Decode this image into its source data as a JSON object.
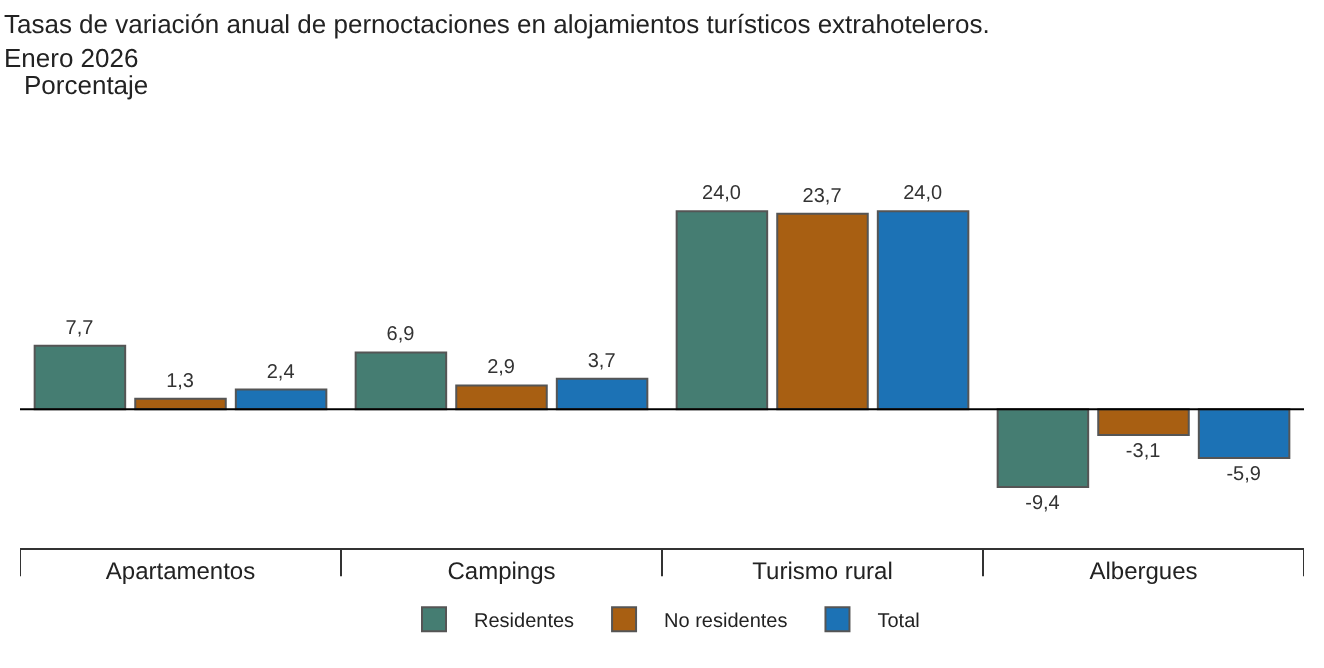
{
  "chart_data": {
    "type": "bar",
    "title": "Tasas de variación anual de pernoctaciones en alojamientos turísticos extrahoteleros.\nEnero 2026",
    "subtitle": "Porcentaje",
    "categories": [
      "Apartamentos",
      "Campings",
      "Turismo rural",
      "Albergues"
    ],
    "series": [
      {
        "name": "Residentes",
        "color": "#457d72",
        "values": [
          7.7,
          6.9,
          24.0,
          -9.4
        ],
        "value_labels": [
          "7,7",
          "6,9",
          "24,0",
          "-9,4"
        ]
      },
      {
        "name": "No residentes",
        "color": "#a85f12",
        "values": [
          1.3,
          2.9,
          23.7,
          -3.1
        ],
        "value_labels": [
          "1,3",
          "2,9",
          "23,7",
          "-3,1"
        ]
      },
      {
        "name": "Total",
        "color": "#1c72b5",
        "values": [
          2.4,
          3.7,
          24.0,
          -5.9
        ],
        "value_labels": [
          "2,4",
          "3,7",
          "24,0",
          "-5,9"
        ]
      }
    ],
    "legend": "bottom"
  }
}
